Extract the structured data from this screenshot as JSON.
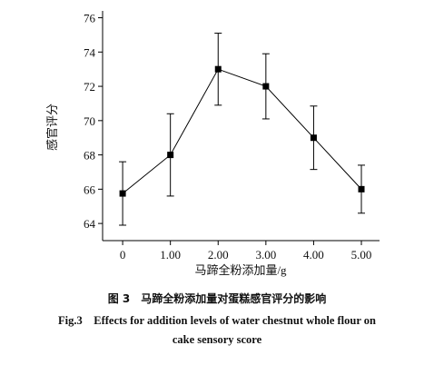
{
  "chart_data": {
    "type": "line",
    "x_label": "马蹄全粉添加量/g",
    "y_label": "感官评分",
    "caption_cn": "图 3　马蹄全粉添加量对蛋糕感官评分的影响",
    "caption_en": [
      "Fig.3　Effects for addition levels of water chestnut whole flour on",
      "cake sensory score"
    ],
    "x": [
      0,
      1,
      2,
      3,
      4,
      5
    ],
    "series": [
      {
        "name": "感官评分",
        "color": "#000000",
        "values": [
          65.75,
          68,
          73,
          72,
          69,
          66
        ],
        "errors": [
          1.85,
          2.4,
          2.1,
          1.9,
          1.85,
          1.4
        ]
      }
    ],
    "xlim": [
      -0.42,
      5.38
    ],
    "xticks": [
      0,
      {
        "value": 1,
        "label": "1.00"
      },
      {
        "value": 2,
        "label": "2.00"
      },
      {
        "value": 3,
        "label": "3.00"
      },
      {
        "value": 4,
        "label": "4.00"
      },
      {
        "value": 5,
        "label": "5.00"
      }
    ],
    "ylim": [
      63,
      76.4
    ],
    "yticks": [
      64,
      66,
      68,
      70,
      72,
      74,
      76
    ],
    "grid": false
  }
}
